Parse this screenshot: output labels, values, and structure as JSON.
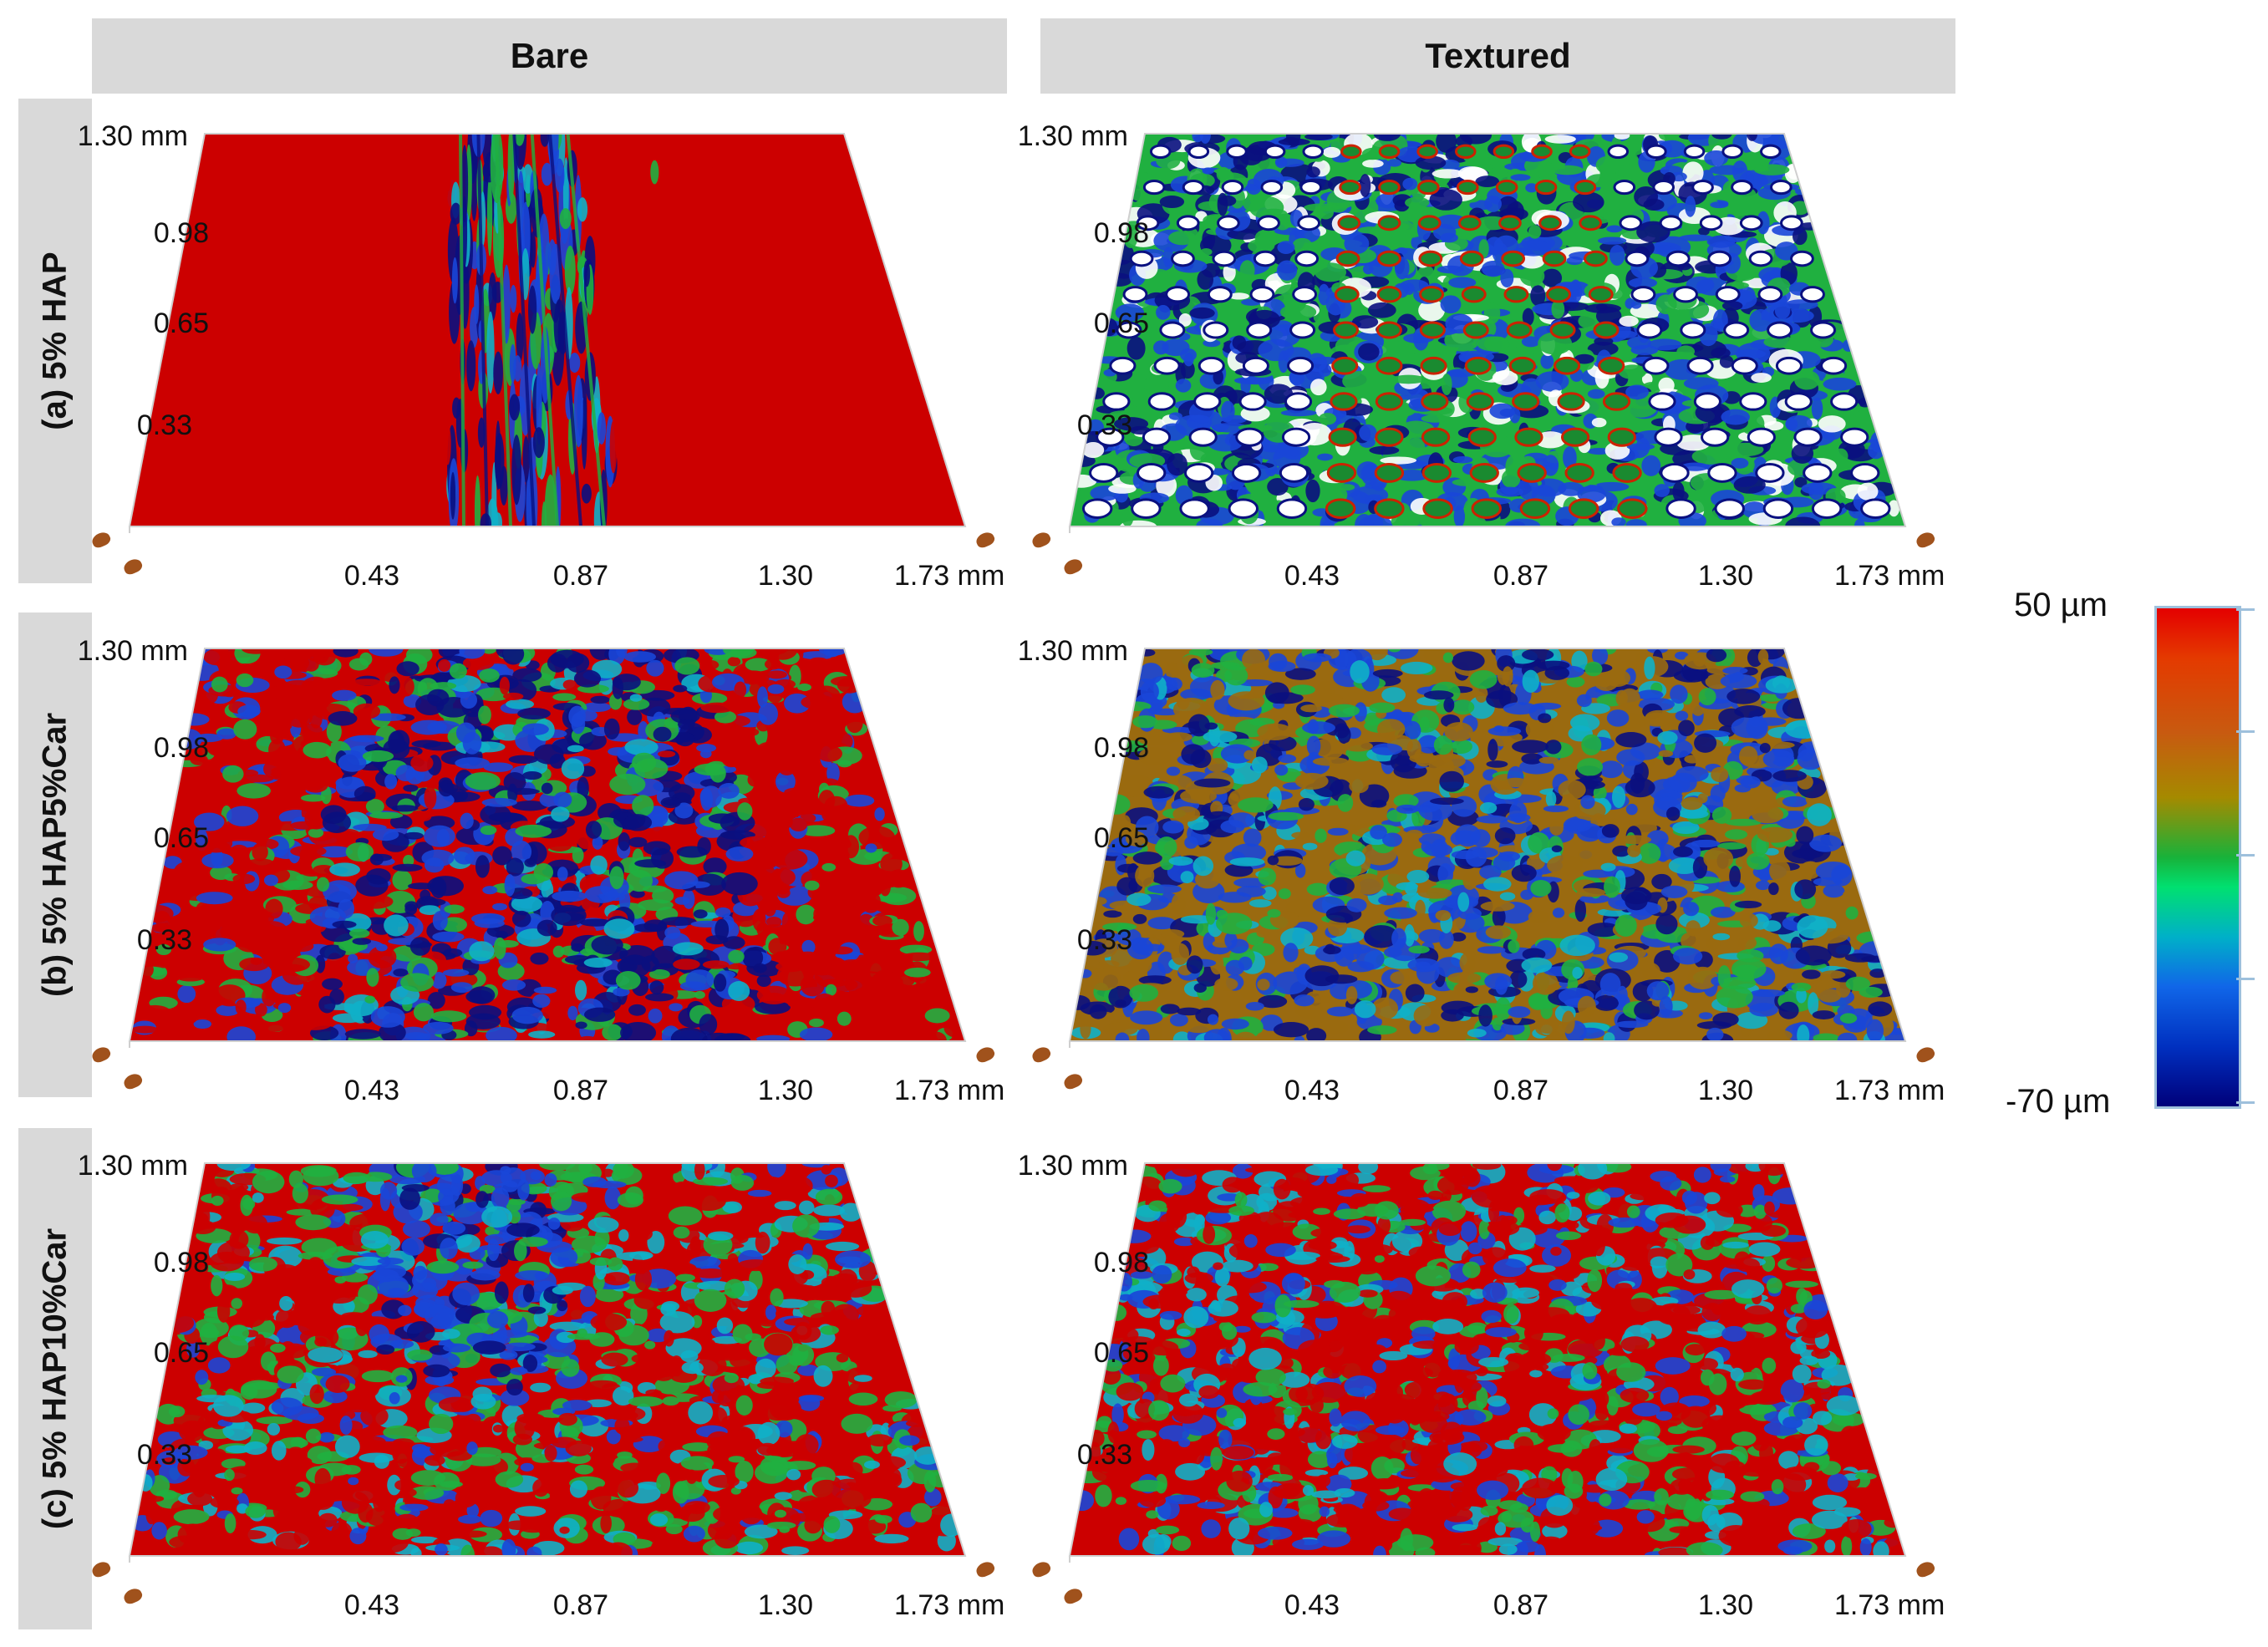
{
  "columns": [
    "Bare",
    "Textured"
  ],
  "rows": [
    "(a) 5% HAP",
    "(b) 5% HAP5%Car",
    "(c) 5% HAP10%Car"
  ],
  "y_ticks": [
    "1.30 mm",
    "0.98",
    "0.65",
    "0.33"
  ],
  "x_ticks": [
    "0.43",
    "0.87",
    "1.30",
    "1.73 mm"
  ],
  "colorbar": {
    "max_label": "50 µm",
    "min_label": "-70 µm",
    "max": 50,
    "min": -70,
    "unit": "µm"
  },
  "colors": {
    "red": "#cc0000",
    "brown": "#9a6a10",
    "green": "#20b040",
    "cyan": "#10b0c8",
    "blue": "#1a46d8",
    "navy": "#0a1080",
    "header_gray": "#d9d9d9"
  },
  "surfaces": [
    {
      "name": "bare-hap",
      "texture": "stripe"
    },
    {
      "name": "textured-hap",
      "texture": "dimples"
    },
    {
      "name": "bare-hap5car",
      "texture": "blue-center"
    },
    {
      "name": "textured-hap5car",
      "texture": "mixed-brown"
    },
    {
      "name": "bare-hap10car",
      "texture": "red-mottled"
    },
    {
      "name": "textured-hap10car",
      "texture": "red-mottled-2"
    }
  ]
}
